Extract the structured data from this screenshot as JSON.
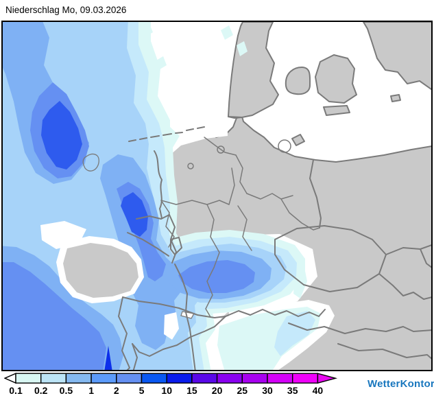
{
  "header": {
    "title": "Niederschlag Mo, 09.03.2026"
  },
  "map": {
    "palette": {
      "sea": "#FFFFFF",
      "dry_land": "#C9C9C9",
      "boundary_line": "#7A7A7A",
      "rain_trace": "#FFFFFF",
      "rain_0_1": "#DCF8F6",
      "rain_0_2": "#C5E9FB",
      "rain_0_5": "#A7D3F9",
      "rain_1": "#7FB1F4",
      "rain_2": "#6590F2",
      "rain_5": "#2E5BEE",
      "rain_10": "#0D2FEA"
    },
    "frame_color": "#000000"
  },
  "legend": {
    "tick_labels": [
      "0.1",
      "0.2",
      "0.5",
      "1",
      "2",
      "5",
      "10",
      "15",
      "20",
      "25",
      "30",
      "35",
      "40"
    ],
    "cell_colors": [
      "#D9F7F3",
      "#BCE4F6",
      "#85B9F0",
      "#5C9BFB",
      "#6590F2",
      "#0A58F2",
      "#0A1CEC",
      "#5A08E8",
      "#8A00F0",
      "#A800F0",
      "#D400F8",
      "#F000FA"
    ],
    "tail_color": "#FFFFFF",
    "head_color": "#E808F0",
    "outline_color": "#000000",
    "label_color": "#000000"
  },
  "branding": {
    "logo_text": "WetterKontor",
    "logo_color": "#1977BE"
  }
}
